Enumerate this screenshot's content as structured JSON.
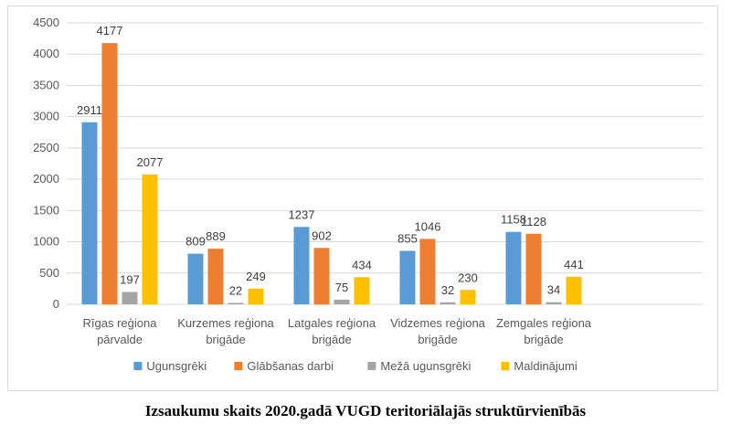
{
  "caption": "Izsaukumu skaits 2020.gadā VUGD teritoriālajās struktūrvienībās",
  "chart_data": {
    "type": "bar",
    "title": "",
    "xlabel": "",
    "ylabel": "",
    "ylim": [
      0,
      4500
    ],
    "yticks": [
      0,
      500,
      1000,
      1500,
      2000,
      2500,
      3000,
      3500,
      4000,
      4500
    ],
    "grid": true,
    "legend_position": "bottom",
    "categories": [
      [
        "Rīgas reģiona",
        "pārvalde"
      ],
      [
        "Kurzemes reģiona",
        "brigāde"
      ],
      [
        "Latgales reģiona",
        "brigāde"
      ],
      [
        "Vidzemes reģiona",
        "brigāde"
      ],
      [
        "Zemgales reģiona",
        "brigāde"
      ]
    ],
    "series": [
      {
        "name": "Ugunsgrēki",
        "color": "#5b9bd5",
        "values": [
          2911,
          809,
          1237,
          855,
          1158
        ]
      },
      {
        "name": "Glābšanas darbi",
        "color": "#ed7d31",
        "values": [
          4177,
          889,
          902,
          1046,
          1128
        ]
      },
      {
        "name": "Mežā ugunsgrēki",
        "color": "#a5a5a5",
        "values": [
          197,
          22,
          75,
          32,
          34
        ]
      },
      {
        "name": "Maldinājumi",
        "color": "#ffc000",
        "values": [
          2077,
          249,
          434,
          230,
          441
        ]
      }
    ]
  }
}
